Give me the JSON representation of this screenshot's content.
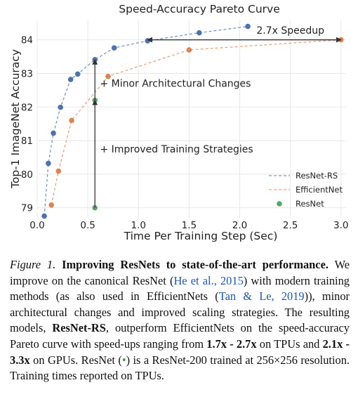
{
  "chart_data": {
    "type": "line",
    "title": "Speed-Accuracy Pareto Curve",
    "xlabel": "Time Per Training Step (Sec)",
    "ylabel": "Top-1 ImageNet Accuracy",
    "xlim": [
      0.0,
      3.05
    ],
    "ylim": [
      78.7,
      84.6
    ],
    "xticks": [
      0.0,
      0.5,
      1.0,
      1.5,
      2.0,
      2.5,
      3.0
    ],
    "xtick_labels": [
      "0.0",
      "0.5",
      "1.0",
      "1.5",
      "2.0",
      "2.5",
      "3.0"
    ],
    "yticks": [
      79,
      80,
      81,
      82,
      83,
      84
    ],
    "ytick_labels": [
      "79",
      "80",
      "81",
      "82",
      "83",
      "84"
    ],
    "grid": true,
    "legend_position": "bottom-right",
    "series": [
      {
        "name": "ResNet-RS",
        "style": "dashed-line-markers",
        "color": "#4c72b0",
        "x": [
          0.07,
          0.11,
          0.16,
          0.23,
          0.33,
          0.4,
          0.57,
          0.76,
          1.09,
          1.6,
          2.08
        ],
        "y": [
          78.75,
          80.32,
          81.22,
          81.99,
          82.82,
          82.98,
          83.41,
          83.76,
          83.97,
          84.21,
          84.4
        ]
      },
      {
        "name": "EfficientNet",
        "style": "dashed-line-markers",
        "color": "#dd8452",
        "x": [
          0.14,
          0.21,
          0.34,
          0.7,
          1.5,
          3.0
        ],
        "y": [
          79.08,
          80.09,
          81.6,
          82.91,
          83.7,
          84.0
        ]
      },
      {
        "name": "ResNet",
        "style": "markers",
        "color": "#55a868",
        "x": [
          0.57,
          0.57
        ],
        "y": [
          79.0,
          82.2
        ]
      }
    ],
    "annotations": [
      {
        "text": "2.7x Speedup",
        "type": "double-arrow",
        "from": [
          1.09,
          84.0
        ],
        "to": [
          3.0,
          84.0
        ],
        "text_at": [
          2.5,
          84.18
        ]
      },
      {
        "text": "+ Minor Architectural Changes",
        "type": "arrow",
        "from": [
          0.57,
          82.2
        ],
        "to": [
          0.57,
          83.41
        ],
        "text_at": [
          0.62,
          82.6
        ]
      },
      {
        "text": "+ Improved Training Strategies",
        "type": "arrow",
        "from": [
          0.57,
          79.0
        ],
        "to": [
          0.57,
          82.2
        ],
        "text_at": [
          0.62,
          80.65
        ]
      }
    ]
  },
  "caption": {
    "label": "Figure 1.",
    "bold_title": "Improving ResNets to state-of-the-art performance.",
    "text_1": "We improve on the canonical ResNet (",
    "cite_1": "He et al., 2015",
    "text_2": ") with modern training methods (as also used in EfficientNets (",
    "cite_2": "Tan & Le, 2019",
    "text_3": ")), minor architectural changes and improved scaling strategies. The resulting models, ",
    "bold_model": "ResNet-RS",
    "text_4": ", outperform EfficientNets on the speed-accuracy Pareto curve with speed-ups ranging from ",
    "bold_tpu": "1.7x - 2.7x",
    "text_5": " on TPUs and ",
    "bold_gpu": "2.1x - 3.3x",
    "text_6": " on GPUs.  ResNet (",
    "dot": "•",
    "text_7": ") is a ResNet-200 trained at 256×256 resolution. Training times reported on TPUs."
  }
}
